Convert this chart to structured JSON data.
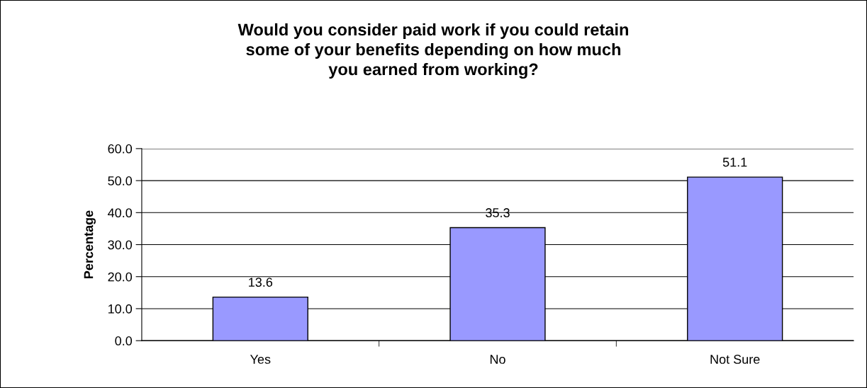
{
  "chart_data": {
    "type": "bar",
    "title": "Would you consider paid work if you could retain\nsome of your benefits depending on how much\nyou earned from working?",
    "ylabel": "Percentage",
    "categories": [
      "Yes",
      "No",
      "Not Sure"
    ],
    "values": [
      13.6,
      35.3,
      51.1
    ],
    "color": "#9999ff",
    "ylim": [
      0,
      60
    ],
    "yticks": [
      {
        "value": 0,
        "label": "0.0"
      },
      {
        "value": 10,
        "label": "10.0"
      },
      {
        "value": 20,
        "label": "20.0"
      },
      {
        "value": 30,
        "label": "30.0"
      },
      {
        "value": 40,
        "label": "40.0"
      },
      {
        "value": 50,
        "label": "50.0"
      },
      {
        "value": 60,
        "label": "60.0"
      }
    ],
    "grid": "y",
    "data_labels": true,
    "legend": false
  }
}
